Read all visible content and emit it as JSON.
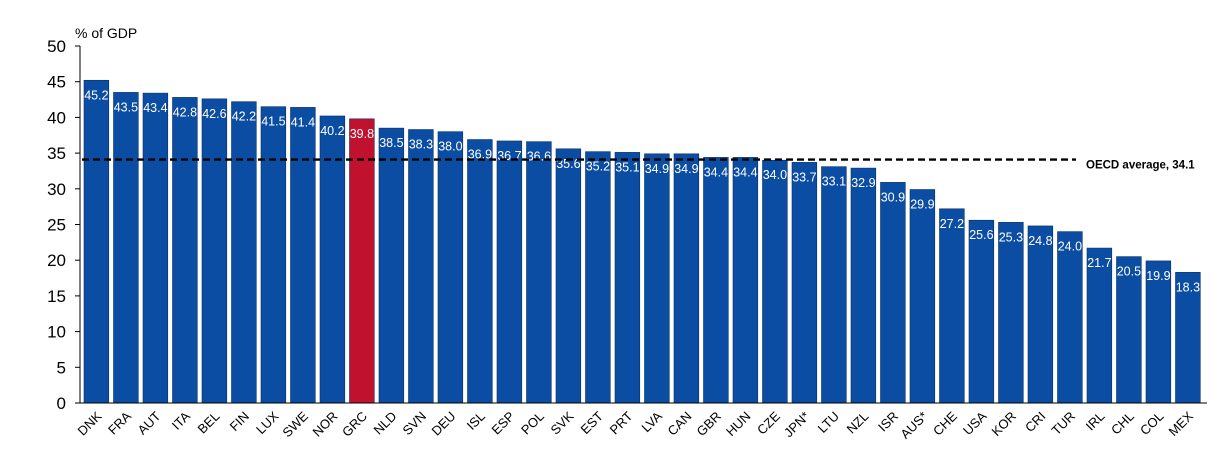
{
  "chart_data": {
    "type": "bar",
    "ylabel": "% of GDP",
    "ylim": [
      0,
      50
    ],
    "yticks": [
      0,
      5,
      10,
      15,
      20,
      25,
      30,
      35,
      40,
      45,
      50
    ],
    "categories": [
      "DNK",
      "FRA",
      "AUT",
      "ITA",
      "BEL",
      "FIN",
      "LUX",
      "SWE",
      "NOR",
      "GRC",
      "NLD",
      "SVN",
      "DEU",
      "ISL",
      "ESP",
      "POL",
      "SVK",
      "EST",
      "PRT",
      "LVA",
      "CAN",
      "GBR",
      "HUN",
      "CZE",
      "JPN*",
      "LTU",
      "NZL",
      "ISR",
      "AUS*",
      "CHE",
      "USA",
      "KOR",
      "CRI",
      "TUR",
      "IRL",
      "CHL",
      "COL",
      "MEX"
    ],
    "values": [
      45.2,
      43.5,
      43.4,
      42.8,
      42.6,
      42.2,
      41.5,
      41.4,
      40.2,
      39.8,
      38.5,
      38.3,
      38.0,
      36.9,
      36.7,
      36.6,
      35.6,
      35.2,
      35.1,
      34.9,
      34.9,
      34.4,
      34.4,
      34.0,
      33.7,
      33.1,
      32.9,
      30.9,
      29.9,
      27.2,
      25.6,
      25.3,
      24.8,
      24.0,
      21.7,
      20.5,
      19.9,
      18.3
    ],
    "labels": [
      "45.2",
      "43.5",
      "43.4",
      "42.8",
      "42.6",
      "42.2",
      "41.5",
      "41.4",
      "40.2",
      "39.8",
      "38.5",
      "38.3",
      "38.0",
      "36.9",
      "36.7",
      "36.6",
      "35.6",
      "35.2",
      "35.1",
      "34.9",
      "34.9",
      "34.4",
      "34.4",
      "34.0",
      "33.7",
      "33.1",
      "32.9",
      "30.9",
      "29.9",
      "27.2",
      "25.6",
      "25.3",
      "24.8",
      "24.0",
      "21.7",
      "20.5",
      "19.9",
      "18.3"
    ],
    "highlight": "GRC",
    "colors": {
      "bar": "#0b4da2",
      "highlight": "#c0112f",
      "edge": "#0a2f66"
    },
    "reference_line": {
      "value": 34.1,
      "label": "OECD average, 34.1",
      "style": "dashed"
    },
    "grid": false
  }
}
